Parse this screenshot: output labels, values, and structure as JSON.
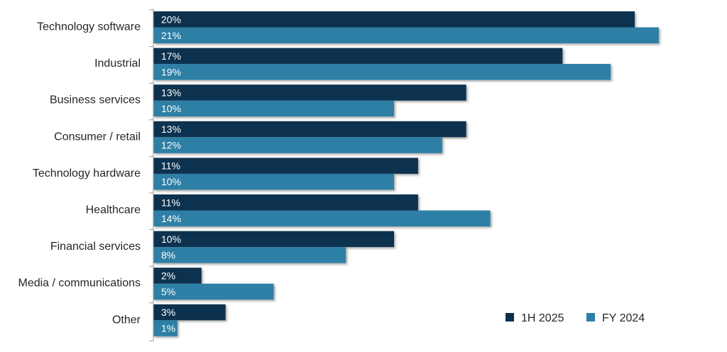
{
  "chart_data": {
    "type": "bar",
    "orientation": "horizontal",
    "categories": [
      "Technology software",
      "Industrial",
      "Business services",
      "Consumer / retail",
      "Technology hardware",
      "Healthcare",
      "Financial services",
      "Media / communications",
      "Other"
    ],
    "series": [
      {
        "name": "1H 2025",
        "color": "#0b3150",
        "values": [
          20,
          17,
          13,
          13,
          11,
          11,
          10,
          2,
          3
        ],
        "labels": [
          "20%",
          "17%",
          "13%",
          "13%",
          "11%",
          "11%",
          "10%",
          "2%",
          "3%"
        ]
      },
      {
        "name": "FY 2024",
        "color": "#2e7fa5",
        "values": [
          21,
          19,
          10,
          12,
          10,
          14,
          8,
          5,
          1
        ],
        "labels": [
          "21%",
          "19%",
          "10%",
          "12%",
          "10%",
          "14%",
          "8%",
          "5%",
          "1%"
        ]
      }
    ],
    "xlim": [
      0,
      25
    ],
    "grid": false,
    "legend_position": "bottom-right"
  }
}
